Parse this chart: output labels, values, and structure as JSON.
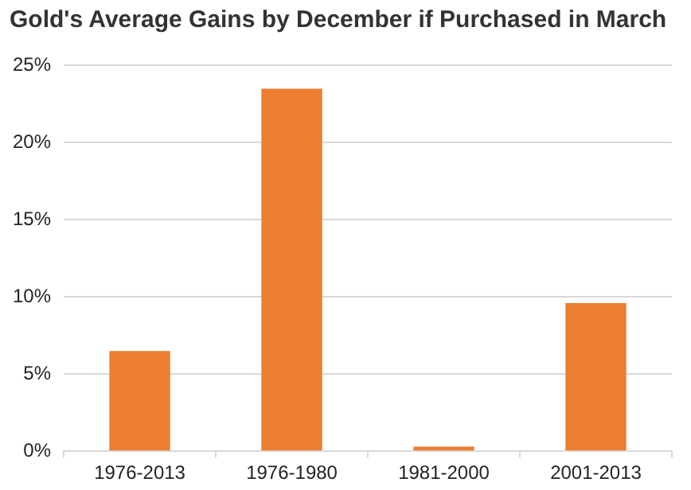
{
  "chart_data": {
    "type": "bar",
    "title": "Gold's Average Gains by December if Purchased in March",
    "categories": [
      "1976-2013",
      "1976-1980",
      "1981-2000",
      "2001-2013"
    ],
    "values": [
      6.5,
      23.5,
      0.3,
      9.6
    ],
    "color": "#ed7d31",
    "ylim": [
      0,
      25
    ],
    "yticks": [
      {
        "value": 0,
        "label": "0%"
      },
      {
        "value": 5,
        "label": "5%"
      },
      {
        "value": 10,
        "label": "10%"
      },
      {
        "value": 15,
        "label": "15%"
      },
      {
        "value": 20,
        "label": "20%"
      },
      {
        "value": 25,
        "label": "25%"
      }
    ],
    "grid": "y"
  }
}
